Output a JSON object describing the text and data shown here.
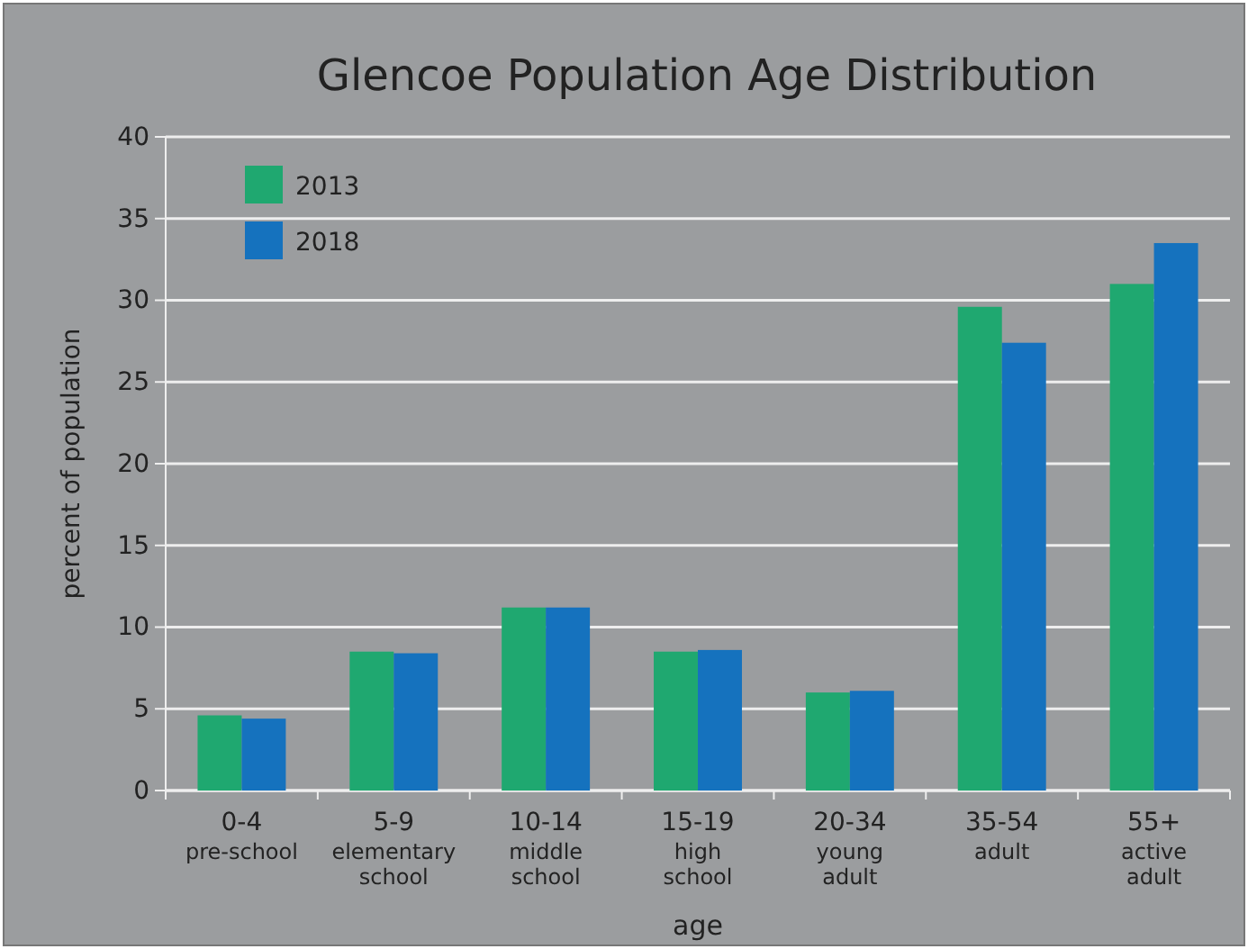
{
  "chart_data": {
    "type": "bar",
    "title": "Glencoe Population Age Distribution",
    "xlabel": "age",
    "ylabel": "percent of population",
    "categories": [
      "0-4\npre-school",
      "5-9\nelementary\nschool",
      "10-14\nmiddle\nschool",
      "15-19\nhigh\nschool",
      "20-34\nyoung\nadult",
      "35-54\nadult",
      "55+\nactive\nadult"
    ],
    "series": [
      {
        "name": "2013",
        "color": "#1fa870",
        "values": [
          4.6,
          8.5,
          11.2,
          8.5,
          6.0,
          29.6,
          31.0
        ]
      },
      {
        "name": "2018",
        "color": "#1572be",
        "values": [
          4.4,
          8.4,
          11.2,
          8.6,
          6.1,
          27.4,
          33.5
        ]
      }
    ],
    "ylim": [
      0,
      40
    ],
    "yticks": [
      0,
      5,
      10,
      15,
      20,
      25,
      30,
      35,
      40
    ],
    "grid": "y",
    "legend": "top left"
  }
}
